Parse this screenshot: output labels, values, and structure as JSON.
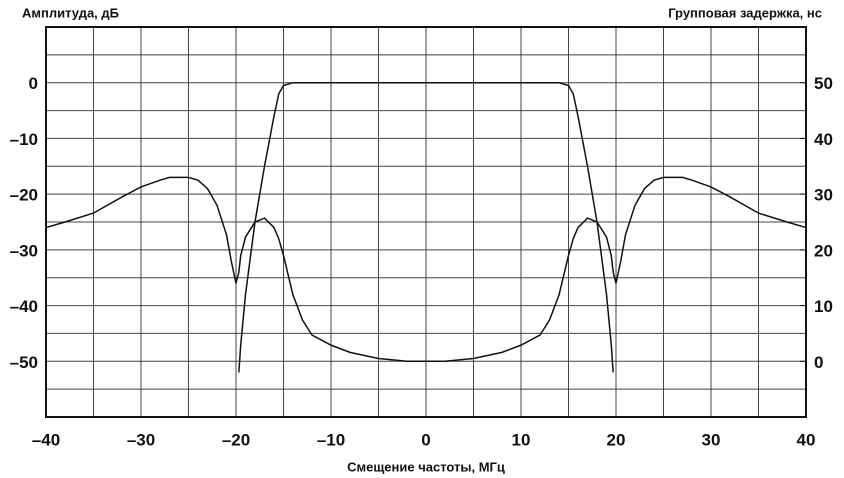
{
  "chart_data": {
    "type": "line",
    "ylabel": "Амплитуда, дБ",
    "y2label": "Групповая задержка, нс",
    "xlabel": "Смещение частоты, МГц",
    "x": [
      -40,
      -38,
      -35,
      -32,
      -30,
      -28,
      -27,
      -25,
      -24,
      -23,
      -22,
      -21,
      -20.5,
      -20,
      -19.7,
      -19.5,
      -19,
      -18,
      -17,
      -16,
      -15.5,
      -15,
      -14,
      -13,
      -12,
      -10,
      -8,
      -5,
      -2,
      0,
      2,
      5,
      8,
      10,
      12,
      13,
      14,
      15,
      15.5,
      16,
      17,
      18,
      19,
      19.5,
      19.7,
      20,
      20.5,
      21,
      22,
      23,
      24,
      25,
      27,
      28,
      30,
      32,
      35,
      38,
      40
    ],
    "series": [
      {
        "color": "#111111",
        "values": [
          null,
          null,
          null,
          null,
          null,
          null,
          null,
          null,
          null,
          null,
          null,
          null,
          null,
          null,
          -52,
          -47,
          -38,
          -25,
          -15,
          -6,
          -2,
          -0.5,
          0,
          0,
          0,
          0,
          0,
          0,
          0,
          0,
          0,
          0,
          0,
          0,
          0,
          0,
          0,
          -0.5,
          -2,
          -6,
          -15,
          -25,
          -38,
          -47,
          -52,
          null,
          null,
          null,
          null,
          null,
          null,
          null,
          null,
          null,
          null,
          null,
          null,
          null,
          null
        ]
      },
      {
        "color": "#111111",
        "axis": "y2",
        "values": [
          24,
          25,
          26.6,
          29.5,
          31.3,
          32.5,
          33,
          33,
          32.5,
          31,
          28,
          22.7,
          18,
          14,
          16,
          19,
          22.3,
          25,
          25.7,
          24,
          22,
          19,
          11.9,
          7.4,
          4.7,
          2.9,
          1.6,
          0.5,
          0,
          0,
          0,
          0.5,
          1.6,
          2.9,
          4.7,
          7.4,
          11.9,
          19,
          22,
          24,
          25.7,
          25,
          22.3,
          19,
          16,
          14,
          18,
          22.7,
          28,
          31,
          32.5,
          33,
          33,
          32.5,
          31.3,
          29.5,
          26.6,
          25,
          24
        ]
      }
    ],
    "xlim": [
      -40,
      40
    ],
    "xticks": [
      {
        "value": -40,
        "label": "–40"
      },
      {
        "value": -30,
        "label": "–30"
      },
      {
        "value": -20,
        "label": "–20"
      },
      {
        "value": -10,
        "label": "–10"
      },
      0,
      10,
      20,
      30,
      40
    ],
    "ylim": [
      -60,
      10
    ],
    "yticks": [
      {
        "value": -50,
        "label": "–50"
      },
      {
        "value": -40,
        "label": "–40"
      },
      {
        "value": -30,
        "label": "–30"
      },
      {
        "value": -20,
        "label": "–20"
      },
      {
        "value": -10,
        "label": "–10"
      },
      0
    ],
    "y2lim": [
      -10,
      60
    ],
    "y2ticks": [
      0,
      10,
      20,
      30,
      40,
      50
    ],
    "grid": true,
    "minor_grid": true
  }
}
